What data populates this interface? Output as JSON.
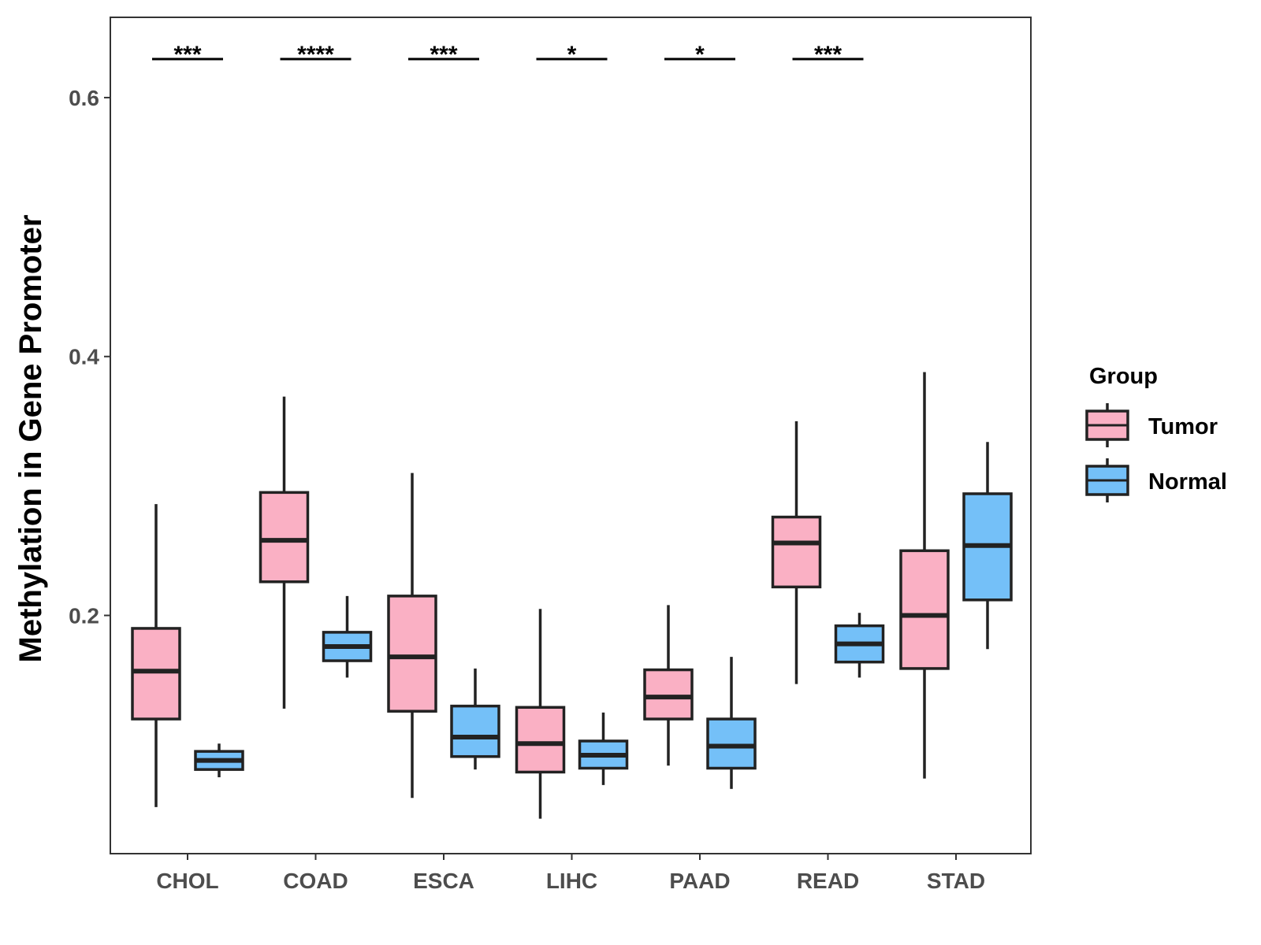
{
  "chart_data": {
    "type": "boxplot",
    "title": "",
    "xlabel": "",
    "ylabel": "Methylation in Gene Promoter",
    "ylim": [
      0.016,
      0.662
    ],
    "yticks": [
      "0.2",
      "0.4",
      "0.6"
    ],
    "categories": [
      "CHOL",
      "COAD",
      "ESCA",
      "LIHC",
      "PAAD",
      "READ",
      "STAD"
    ],
    "legend": {
      "title": "Group",
      "placement": "right",
      "entries": [
        {
          "name": "Tumor",
          "color": "#FAB0C4"
        },
        {
          "name": "Normal",
          "color": "#74C0F8"
        }
      ]
    },
    "series": [
      {
        "name": "Tumor",
        "color": "#FAB0C4",
        "boxes": [
          {
            "whisker_low": 0.052,
            "q1": 0.12,
            "median": 0.157,
            "q3": 0.19,
            "whisker_high": 0.286
          },
          {
            "whisker_low": 0.128,
            "q1": 0.226,
            "median": 0.258,
            "q3": 0.295,
            "whisker_high": 0.369
          },
          {
            "whisker_low": 0.059,
            "q1": 0.126,
            "median": 0.168,
            "q3": 0.215,
            "whisker_high": 0.31
          },
          {
            "whisker_low": 0.043,
            "q1": 0.079,
            "median": 0.101,
            "q3": 0.129,
            "whisker_high": 0.205
          },
          {
            "whisker_low": 0.084,
            "q1": 0.12,
            "median": 0.137,
            "q3": 0.158,
            "whisker_high": 0.208
          },
          {
            "whisker_low": 0.147,
            "q1": 0.222,
            "median": 0.256,
            "q3": 0.276,
            "whisker_high": 0.35
          },
          {
            "whisker_low": 0.074,
            "q1": 0.159,
            "median": 0.2,
            "q3": 0.25,
            "whisker_high": 0.388
          }
        ]
      },
      {
        "name": "Normal",
        "color": "#74C0F8",
        "boxes": [
          {
            "whisker_low": 0.075,
            "q1": 0.081,
            "median": 0.088,
            "q3": 0.095,
            "whisker_high": 0.101
          },
          {
            "whisker_low": 0.152,
            "q1": 0.165,
            "median": 0.176,
            "q3": 0.187,
            "whisker_high": 0.215
          },
          {
            "whisker_low": 0.081,
            "q1": 0.091,
            "median": 0.106,
            "q3": 0.13,
            "whisker_high": 0.159
          },
          {
            "whisker_low": 0.069,
            "q1": 0.082,
            "median": 0.092,
            "q3": 0.103,
            "whisker_high": 0.125
          },
          {
            "whisker_low": 0.066,
            "q1": 0.082,
            "median": 0.099,
            "q3": 0.12,
            "whisker_high": 0.168
          },
          {
            "whisker_low": 0.152,
            "q1": 0.164,
            "median": 0.178,
            "q3": 0.192,
            "whisker_high": 0.202
          },
          {
            "whisker_low": 0.174,
            "q1": 0.212,
            "median": 0.254,
            "q3": 0.294,
            "whisker_high": 0.334
          }
        ]
      }
    ],
    "significance": [
      {
        "category": "CHOL",
        "label": "***"
      },
      {
        "category": "COAD",
        "label": "****"
      },
      {
        "category": "ESCA",
        "label": "***"
      },
      {
        "category": "LIHC",
        "label": "*"
      },
      {
        "category": "PAAD",
        "label": "*"
      },
      {
        "category": "READ",
        "label": "***"
      }
    ],
    "grid": false
  }
}
